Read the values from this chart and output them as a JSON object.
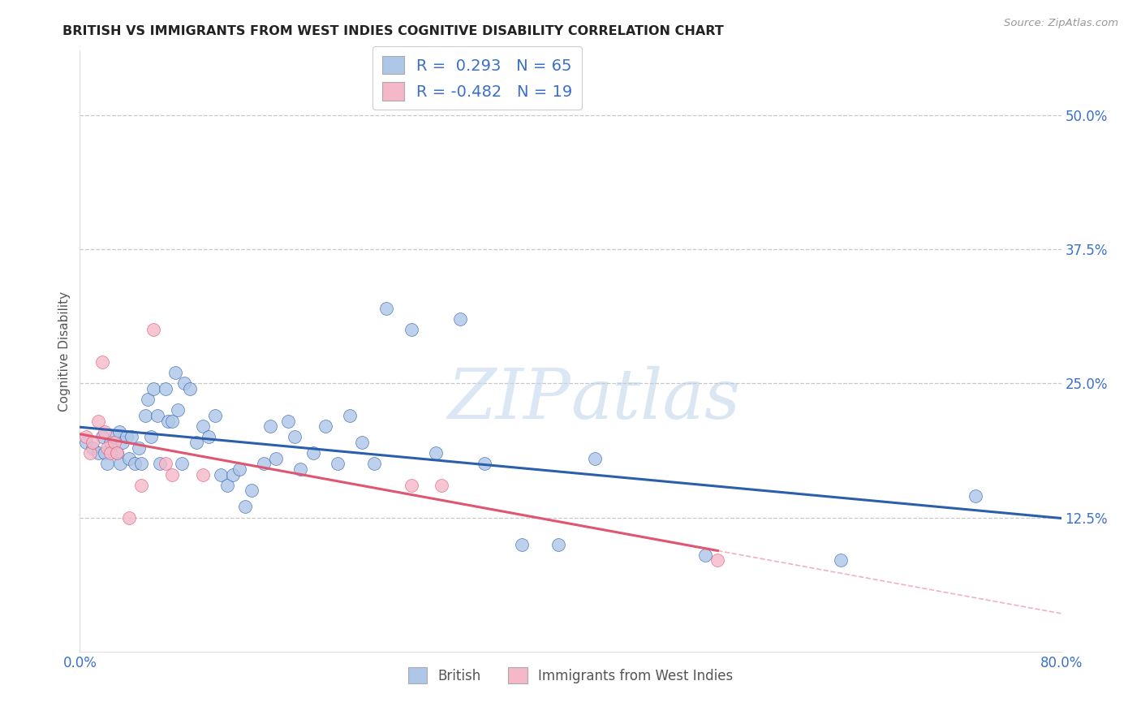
{
  "title": "BRITISH VS IMMIGRANTS FROM WEST INDIES COGNITIVE DISABILITY CORRELATION CHART",
  "source": "Source: ZipAtlas.com",
  "ylabel": "Cognitive Disability",
  "xlim": [
    0.0,
    0.8
  ],
  "ylim": [
    0.0,
    0.56
  ],
  "yticks": [
    0.125,
    0.25,
    0.375,
    0.5
  ],
  "ytick_labels": [
    "12.5%",
    "25.0%",
    "37.5%",
    "50.0%"
  ],
  "xticks": [
    0.0,
    0.1,
    0.2,
    0.3,
    0.4,
    0.5,
    0.6,
    0.7,
    0.8
  ],
  "xtick_labels": [
    "0.0%",
    "",
    "",
    "",
    "",
    "",
    "",
    "",
    "80.0%"
  ],
  "british_color": "#aec6e8",
  "british_line_color": "#2b5fac",
  "immigrants_color": "#f4b8c8",
  "immigrants_line_color": "#e05570",
  "british_R": 0.293,
  "british_N": 65,
  "immigrants_R": -0.482,
  "immigrants_N": 19,
  "british_x": [
    0.005,
    0.01,
    0.015,
    0.018,
    0.02,
    0.022,
    0.025,
    0.028,
    0.03,
    0.032,
    0.033,
    0.035,
    0.038,
    0.04,
    0.042,
    0.045,
    0.048,
    0.05,
    0.053,
    0.055,
    0.058,
    0.06,
    0.063,
    0.065,
    0.07,
    0.072,
    0.075,
    0.078,
    0.08,
    0.083,
    0.085,
    0.09,
    0.095,
    0.1,
    0.105,
    0.11,
    0.115,
    0.12,
    0.125,
    0.13,
    0.135,
    0.14,
    0.15,
    0.155,
    0.16,
    0.17,
    0.175,
    0.18,
    0.19,
    0.2,
    0.21,
    0.22,
    0.23,
    0.24,
    0.25,
    0.27,
    0.29,
    0.31,
    0.33,
    0.36,
    0.39,
    0.42,
    0.51,
    0.62,
    0.73
  ],
  "british_y": [
    0.195,
    0.19,
    0.185,
    0.2,
    0.185,
    0.175,
    0.195,
    0.2,
    0.185,
    0.205,
    0.175,
    0.195,
    0.2,
    0.18,
    0.2,
    0.175,
    0.19,
    0.175,
    0.22,
    0.235,
    0.2,
    0.245,
    0.22,
    0.175,
    0.245,
    0.215,
    0.215,
    0.26,
    0.225,
    0.175,
    0.25,
    0.245,
    0.195,
    0.21,
    0.2,
    0.22,
    0.165,
    0.155,
    0.165,
    0.17,
    0.135,
    0.15,
    0.175,
    0.21,
    0.18,
    0.215,
    0.2,
    0.17,
    0.185,
    0.21,
    0.175,
    0.22,
    0.195,
    0.175,
    0.32,
    0.3,
    0.185,
    0.31,
    0.175,
    0.1,
    0.1,
    0.18,
    0.09,
    0.085,
    0.145
  ],
  "immigrants_x": [
    0.005,
    0.008,
    0.01,
    0.015,
    0.018,
    0.02,
    0.022,
    0.025,
    0.028,
    0.03,
    0.04,
    0.05,
    0.06,
    0.07,
    0.075,
    0.1,
    0.27,
    0.295,
    0.52
  ],
  "immigrants_y": [
    0.2,
    0.185,
    0.195,
    0.215,
    0.27,
    0.205,
    0.19,
    0.185,
    0.195,
    0.185,
    0.125,
    0.155,
    0.3,
    0.175,
    0.165,
    0.165,
    0.155,
    0.155,
    0.085
  ],
  "background_color": "#ffffff",
  "grid_color": "#c8c8c8",
  "watermark": "ZIPatlas",
  "legend_british": "British",
  "legend_immigrants": "Immigrants from West Indies"
}
